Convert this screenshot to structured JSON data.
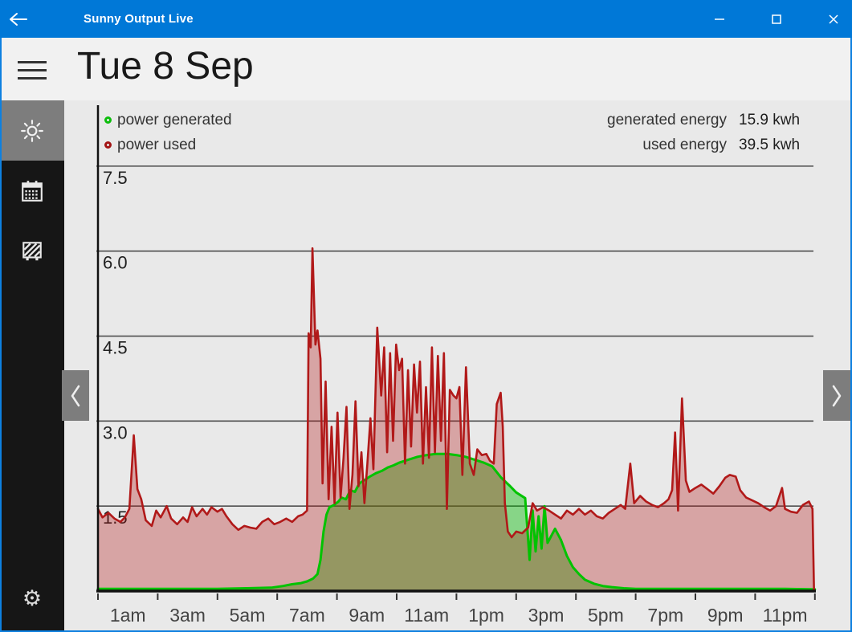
{
  "window": {
    "title": "Sunny Output Live"
  },
  "header": {
    "date_title": "Tue 8 Sep"
  },
  "icons": {
    "gear": "⚙"
  },
  "sidebar": {
    "items": [
      {
        "icon": "sun-icon",
        "selected": true
      },
      {
        "icon": "calendar-icon",
        "selected": false
      },
      {
        "icon": "solar-panel-icon",
        "selected": false
      }
    ],
    "footer_icon": "gear-icon"
  },
  "legend": {
    "items": [
      {
        "label": "power generated",
        "color": "#0cbe0c"
      },
      {
        "label": "power used",
        "color": "#a31414"
      }
    ]
  },
  "stats": {
    "items": [
      {
        "label": "generated energy",
        "value": "15.9 kwh"
      },
      {
        "label": "used energy",
        "value": "39.5 kwh"
      }
    ]
  },
  "colors": {
    "titlebar": "#0078d7",
    "window_border": "#0d80e0",
    "sidebar": "#161616",
    "sidebar_selected": "#7d7d7d",
    "content_bg": "#e9e9e9",
    "gridline": "#4f4f4f",
    "axis": "#111111",
    "generated_line": "#00c300",
    "generated_fill": "rgba(0,185,0,0.42)",
    "used_line": "#b11919",
    "used_fill": "rgba(178,25,25,0.33)"
  },
  "chart_data": {
    "type": "area",
    "x_unit": "hour of day",
    "x_range": [
      0,
      24
    ],
    "ylim": [
      0,
      7.9
    ],
    "grid": true,
    "legend_position": "top-left",
    "y_ticks": [
      {
        "value": 7.5,
        "label": "7.5"
      },
      {
        "value": 6.0,
        "label": "6.0"
      },
      {
        "value": 4.5,
        "label": "4.5"
      },
      {
        "value": 3.0,
        "label": "3.0"
      },
      {
        "value": 1.5,
        "label": "1.5"
      }
    ],
    "x_tick_hours": [
      0,
      2,
      4,
      6,
      8,
      10,
      12,
      14,
      16,
      18,
      20,
      22,
      24
    ],
    "x_labels": [
      {
        "h": 1,
        "label": "1am"
      },
      {
        "h": 3,
        "label": "3am"
      },
      {
        "h": 5,
        "label": "5am"
      },
      {
        "h": 7,
        "label": "7am"
      },
      {
        "h": 9,
        "label": "9am"
      },
      {
        "h": 11,
        "label": "11am"
      },
      {
        "h": 13,
        "label": "1pm"
      },
      {
        "h": 15,
        "label": "3pm"
      },
      {
        "h": 17,
        "label": "5pm"
      },
      {
        "h": 19,
        "label": "7pm"
      },
      {
        "h": 21,
        "label": "9pm"
      },
      {
        "h": 23,
        "label": "11pm"
      }
    ],
    "series": [
      {
        "name": "power generated",
        "unit": "kW",
        "line_color": "#00c300",
        "fill_color": "rgba(0,185,0,0.42)",
        "points": [
          [
            0,
            0.04
          ],
          [
            1,
            0.04
          ],
          [
            2,
            0.04
          ],
          [
            3,
            0.04
          ],
          [
            4,
            0.04
          ],
          [
            5,
            0.05
          ],
          [
            5.8,
            0.06
          ],
          [
            6.2,
            0.09
          ],
          [
            6.5,
            0.12
          ],
          [
            6.8,
            0.14
          ],
          [
            7,
            0.17
          ],
          [
            7.2,
            0.22
          ],
          [
            7.35,
            0.3
          ],
          [
            7.45,
            0.55
          ],
          [
            7.55,
            1.05
          ],
          [
            7.65,
            1.35
          ],
          [
            7.75,
            1.48
          ],
          [
            7.9,
            1.52
          ],
          [
            8.05,
            1.58
          ],
          [
            8.15,
            1.65
          ],
          [
            8.3,
            1.62
          ],
          [
            8.45,
            1.78
          ],
          [
            8.6,
            1.75
          ],
          [
            8.75,
            1.9
          ],
          [
            8.9,
            1.95
          ],
          [
            9.1,
            2.02
          ],
          [
            9.3,
            2.08
          ],
          [
            9.5,
            2.12
          ],
          [
            9.7,
            2.18
          ],
          [
            9.9,
            2.22
          ],
          [
            10.1,
            2.27
          ],
          [
            10.4,
            2.32
          ],
          [
            10.7,
            2.37
          ],
          [
            11,
            2.4
          ],
          [
            11.3,
            2.42
          ],
          [
            11.7,
            2.42
          ],
          [
            12,
            2.4
          ],
          [
            12.3,
            2.37
          ],
          [
            12.6,
            2.32
          ],
          [
            12.9,
            2.27
          ],
          [
            13.2,
            2.2
          ],
          [
            13.5,
            2.0
          ],
          [
            13.8,
            1.85
          ],
          [
            14,
            1.74
          ],
          [
            14.3,
            1.64
          ],
          [
            14.45,
            0.55
          ],
          [
            14.55,
            1.42
          ],
          [
            14.65,
            0.7
          ],
          [
            14.75,
            1.32
          ],
          [
            14.85,
            0.75
          ],
          [
            14.95,
            1.5
          ],
          [
            15.05,
            0.85
          ],
          [
            15.15,
            0.95
          ],
          [
            15.3,
            1.1
          ],
          [
            15.5,
            0.9
          ],
          [
            15.7,
            0.62
          ],
          [
            15.9,
            0.42
          ],
          [
            16.1,
            0.3
          ],
          [
            16.3,
            0.2
          ],
          [
            16.6,
            0.13
          ],
          [
            16.9,
            0.09
          ],
          [
            17.2,
            0.07
          ],
          [
            17.6,
            0.05
          ],
          [
            18,
            0.04
          ],
          [
            19,
            0.04
          ],
          [
            20,
            0.04
          ],
          [
            21,
            0.04
          ],
          [
            22,
            0.04
          ],
          [
            23,
            0.04
          ],
          [
            24,
            0.03
          ]
        ]
      },
      {
        "name": "power used",
        "unit": "kW",
        "line_color": "#b11919",
        "fill_color": "rgba(178,25,25,0.33)",
        "points": [
          [
            0,
            1.45
          ],
          [
            0.15,
            1.3
          ],
          [
            0.35,
            1.38
          ],
          [
            0.55,
            1.28
          ],
          [
            0.75,
            1.22
          ],
          [
            0.9,
            1.3
          ],
          [
            1.05,
            1.45
          ],
          [
            1.2,
            2.75
          ],
          [
            1.32,
            1.8
          ],
          [
            1.45,
            1.62
          ],
          [
            1.6,
            1.25
          ],
          [
            1.8,
            1.15
          ],
          [
            1.95,
            1.42
          ],
          [
            2.1,
            1.3
          ],
          [
            2.3,
            1.5
          ],
          [
            2.45,
            1.28
          ],
          [
            2.65,
            1.18
          ],
          [
            2.85,
            1.3
          ],
          [
            3,
            1.22
          ],
          [
            3.15,
            1.48
          ],
          [
            3.3,
            1.32
          ],
          [
            3.5,
            1.45
          ],
          [
            3.65,
            1.35
          ],
          [
            3.8,
            1.48
          ],
          [
            4,
            1.4
          ],
          [
            4.15,
            1.45
          ],
          [
            4.3,
            1.32
          ],
          [
            4.5,
            1.18
          ],
          [
            4.7,
            1.08
          ],
          [
            4.9,
            1.15
          ],
          [
            5.1,
            1.12
          ],
          [
            5.3,
            1.1
          ],
          [
            5.5,
            1.22
          ],
          [
            5.7,
            1.28
          ],
          [
            5.9,
            1.18
          ],
          [
            6.1,
            1.22
          ],
          [
            6.3,
            1.28
          ],
          [
            6.5,
            1.22
          ],
          [
            6.7,
            1.32
          ],
          [
            6.85,
            1.35
          ],
          [
            7,
            1.42
          ],
          [
            7.05,
            4.55
          ],
          [
            7.12,
            4.3
          ],
          [
            7.18,
            6.05
          ],
          [
            7.28,
            4.35
          ],
          [
            7.35,
            4.6
          ],
          [
            7.45,
            4.1
          ],
          [
            7.52,
            1.9
          ],
          [
            7.62,
            3.7
          ],
          [
            7.72,
            1.62
          ],
          [
            7.82,
            2.9
          ],
          [
            7.92,
            1.55
          ],
          [
            8.02,
            3.15
          ],
          [
            8.12,
            1.65
          ],
          [
            8.22,
            2.35
          ],
          [
            8.32,
            3.25
          ],
          [
            8.42,
            1.45
          ],
          [
            8.52,
            2.05
          ],
          [
            8.62,
            3.35
          ],
          [
            8.72,
            1.85
          ],
          [
            8.82,
            2.45
          ],
          [
            8.92,
            1.55
          ],
          [
            9.02,
            2.25
          ],
          [
            9.12,
            3.05
          ],
          [
            9.22,
            2.15
          ],
          [
            9.35,
            4.65
          ],
          [
            9.48,
            3.45
          ],
          [
            9.58,
            4.3
          ],
          [
            9.68,
            2.45
          ],
          [
            9.78,
            4.2
          ],
          [
            9.88,
            2.65
          ],
          [
            9.98,
            4.35
          ],
          [
            10.08,
            3.9
          ],
          [
            10.18,
            4.1
          ],
          [
            10.28,
            2.25
          ],
          [
            10.38,
            3.9
          ],
          [
            10.48,
            2.55
          ],
          [
            10.58,
            4.0
          ],
          [
            10.68,
            3.15
          ],
          [
            10.78,
            4.05
          ],
          [
            10.88,
            2.25
          ],
          [
            10.98,
            3.6
          ],
          [
            11.08,
            2.35
          ],
          [
            11.18,
            4.3
          ],
          [
            11.28,
            2.45
          ],
          [
            11.38,
            4.15
          ],
          [
            11.48,
            2.65
          ],
          [
            11.58,
            4.2
          ],
          [
            11.68,
            1.45
          ],
          [
            11.78,
            3.55
          ],
          [
            11.9,
            3.45
          ],
          [
            12,
            3.4
          ],
          [
            12.1,
            3.6
          ],
          [
            12.2,
            2.05
          ],
          [
            12.32,
            3.95
          ],
          [
            12.45,
            2.25
          ],
          [
            12.58,
            2.05
          ],
          [
            12.7,
            2.5
          ],
          [
            12.85,
            2.4
          ],
          [
            13,
            2.42
          ],
          [
            13.12,
            2.3
          ],
          [
            13.25,
            2.25
          ],
          [
            13.35,
            3.3
          ],
          [
            13.48,
            3.5
          ],
          [
            13.55,
            2.9
          ],
          [
            13.62,
            1.55
          ],
          [
            13.72,
            1.05
          ],
          [
            13.85,
            0.95
          ],
          [
            14,
            1.05
          ],
          [
            14.2,
            1.02
          ],
          [
            14.4,
            1.12
          ],
          [
            14.55,
            1.55
          ],
          [
            14.7,
            1.42
          ],
          [
            14.9,
            1.48
          ],
          [
            15.1,
            1.42
          ],
          [
            15.3,
            1.35
          ],
          [
            15.5,
            1.28
          ],
          [
            15.7,
            1.42
          ],
          [
            15.9,
            1.35
          ],
          [
            16.1,
            1.45
          ],
          [
            16.3,
            1.35
          ],
          [
            16.5,
            1.42
          ],
          [
            16.7,
            1.32
          ],
          [
            16.9,
            1.28
          ],
          [
            17.1,
            1.38
          ],
          [
            17.3,
            1.45
          ],
          [
            17.5,
            1.52
          ],
          [
            17.65,
            1.45
          ],
          [
            17.82,
            2.25
          ],
          [
            17.95,
            1.55
          ],
          [
            18.15,
            1.68
          ],
          [
            18.35,
            1.58
          ],
          [
            18.55,
            1.52
          ],
          [
            18.75,
            1.48
          ],
          [
            18.95,
            1.55
          ],
          [
            19.1,
            1.62
          ],
          [
            19.22,
            1.78
          ],
          [
            19.32,
            2.8
          ],
          [
            19.42,
            1.42
          ],
          [
            19.55,
            3.4
          ],
          [
            19.68,
            1.95
          ],
          [
            19.8,
            1.75
          ],
          [
            20,
            1.82
          ],
          [
            20.2,
            1.88
          ],
          [
            20.4,
            1.8
          ],
          [
            20.6,
            1.72
          ],
          [
            20.8,
            1.85
          ],
          [
            21,
            2.0
          ],
          [
            21.15,
            2.05
          ],
          [
            21.35,
            2.02
          ],
          [
            21.5,
            1.78
          ],
          [
            21.7,
            1.65
          ],
          [
            21.9,
            1.6
          ],
          [
            22.1,
            1.55
          ],
          [
            22.3,
            1.48
          ],
          [
            22.5,
            1.42
          ],
          [
            22.7,
            1.5
          ],
          [
            22.9,
            1.82
          ],
          [
            23,
            1.45
          ],
          [
            23.2,
            1.4
          ],
          [
            23.4,
            1.38
          ],
          [
            23.6,
            1.52
          ],
          [
            23.8,
            1.58
          ],
          [
            23.92,
            1.45
          ],
          [
            23.97,
            0
          ]
        ]
      }
    ],
    "totals": {
      "generated_energy_kwh": 15.9,
      "used_energy_kwh": 39.5
    }
  }
}
